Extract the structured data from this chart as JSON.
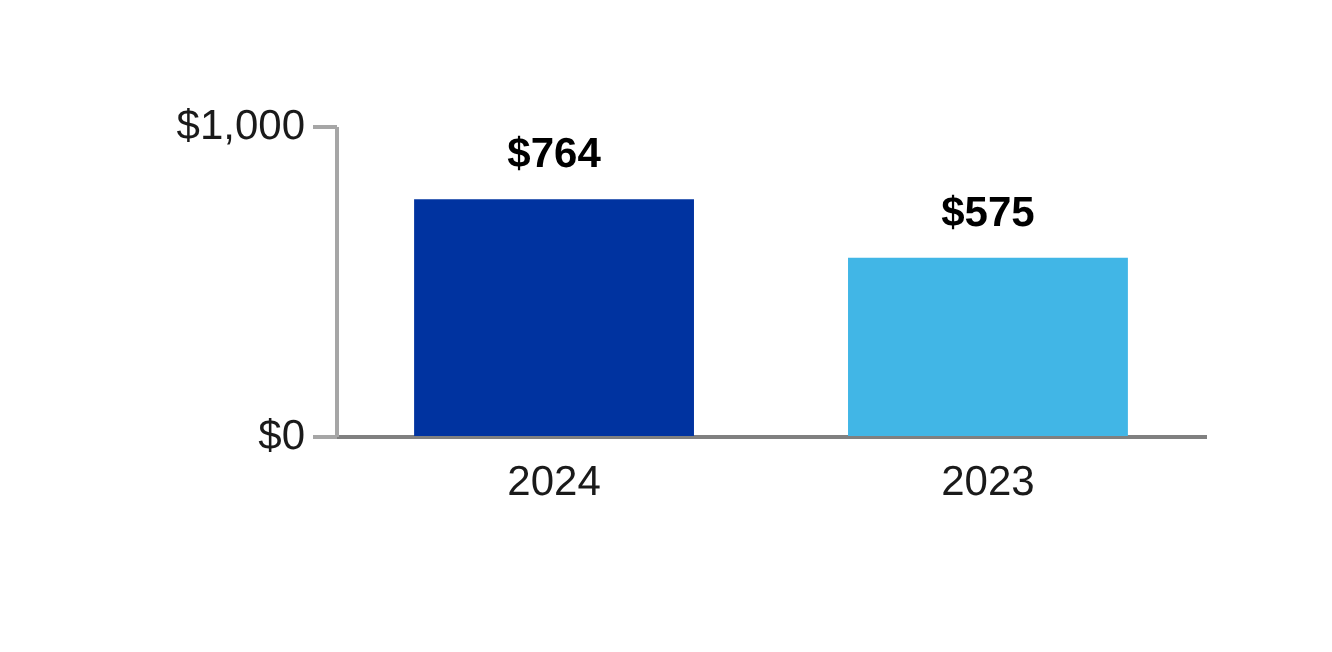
{
  "chart_data": {
    "type": "bar",
    "categories": [
      "2024",
      "2023"
    ],
    "values": [
      764,
      575
    ],
    "colors": [
      "#0033a0",
      "#41b6e6"
    ],
    "value_labels": [
      "$764",
      "$575"
    ],
    "ylim": [
      0,
      1000
    ],
    "yticks": [
      {
        "value": 0,
        "label": "$0"
      },
      {
        "value": 1000,
        "label": "$1,000"
      }
    ],
    "grid": false
  }
}
